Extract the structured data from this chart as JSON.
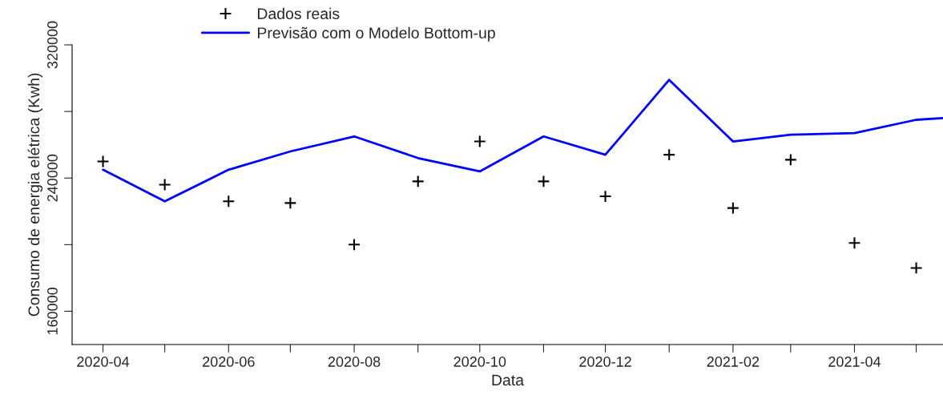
{
  "chart_data": {
    "type": "line",
    "xlabel": "Data",
    "ylabel": "Consumo de energia elétrica (Kwh)",
    "xlim": [
      "2020-03-17",
      "2021-05-14"
    ],
    "xticks": [
      {
        "value": "2020-04",
        "label": "2020-04"
      },
      {
        "value": "2020-05",
        "label": null
      },
      {
        "value": "2020-06",
        "label": "2020-06"
      },
      {
        "value": "2020-07",
        "label": null
      },
      {
        "value": "2020-08",
        "label": "2020-08"
      },
      {
        "value": "2020-09",
        "label": null
      },
      {
        "value": "2020-10",
        "label": "2020-10"
      },
      {
        "value": "2020-11",
        "label": null
      },
      {
        "value": "2020-12",
        "label": "2020-12"
      },
      {
        "value": "2021-01",
        "label": null
      },
      {
        "value": "2021-02",
        "label": "2021-02"
      },
      {
        "value": "2021-03",
        "label": null
      },
      {
        "value": "2021-04",
        "label": "2021-04"
      },
      {
        "value": "2021-05",
        "label": null
      }
    ],
    "ylim": [
      140000,
      320000
    ],
    "yticks": [
      160000,
      {
        "value": 200000,
        "label": null
      },
      240000,
      {
        "value": 280000,
        "label": null
      },
      320000
    ],
    "grid": false,
    "legend": "top",
    "series": [
      {
        "name": "Dados reais",
        "type": "scatter",
        "marker": "cross",
        "color": "#000000",
        "x": [
          "2020-04",
          "2020-05",
          "2020-06",
          "2020-07",
          "2020-08",
          "2020-09",
          "2020-10",
          "2020-11",
          "2020-12",
          "2021-01",
          "2021-02",
          "2021-03",
          "2021-04",
          "2021-05"
        ],
        "values": [
          250000,
          236000,
          226000,
          225000,
          200000,
          238000,
          262000,
          238000,
          229000,
          254000,
          222000,
          251000,
          201000,
          186000
        ]
      },
      {
        "name": "Previsão com o Modelo Bottom-up",
        "marker": "none",
        "line_style": "solid",
        "color": "#0000ff",
        "x": [
          "2020-04",
          "2020-05",
          "2020-06",
          "2020-07",
          "2020-08",
          "2020-09",
          "2020-10",
          "2020-11",
          "2020-12",
          "2021-01",
          "2021-02",
          "2021-03",
          "2021-04",
          "2021-05",
          "2021-05-14"
        ],
        "values": [
          245000,
          226000,
          245000,
          256000,
          265000,
          252000,
          244000,
          265000,
          254000,
          299000,
          262000,
          266000,
          267000,
          275000,
          276000
        ]
      }
    ]
  }
}
